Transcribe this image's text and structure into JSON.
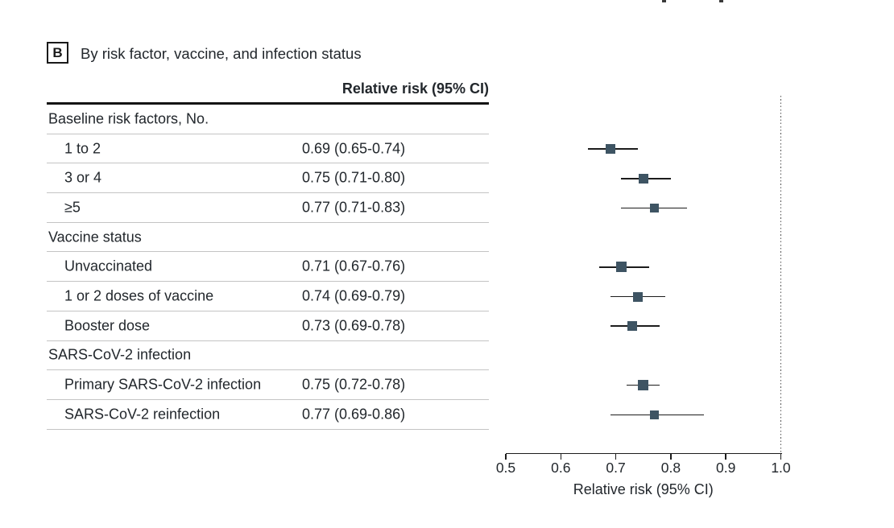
{
  "panel": {
    "letter": "B",
    "title": "By risk factor, vaccine, and infection status"
  },
  "table": {
    "column_header": "Relative risk (95% CI)",
    "rows": [
      {
        "type": "group",
        "label": "Baseline risk factors, No.",
        "value": ""
      },
      {
        "type": "item",
        "label": "1 to 2",
        "value": "0.69 (0.65-0.74)"
      },
      {
        "type": "item",
        "label": "3 or 4",
        "value": "0.75 (0.71-0.80)"
      },
      {
        "type": "item",
        "label": "≥5",
        "value": "0.77 (0.71-0.83)"
      },
      {
        "type": "group",
        "label": "Vaccine status",
        "value": ""
      },
      {
        "type": "item",
        "label": "Unvaccinated",
        "value": "0.71 (0.67-0.76)"
      },
      {
        "type": "item",
        "label": "1 or 2 doses of vaccine",
        "value": "0.74 (0.69-0.79)"
      },
      {
        "type": "item",
        "label": "Booster dose",
        "value": "0.73 (0.69-0.78)"
      },
      {
        "type": "group",
        "label": "SARS-CoV-2 infection",
        "value": ""
      },
      {
        "type": "item",
        "label": "Primary SARS-CoV-2 infection",
        "value": "0.75 (0.72-0.78)"
      },
      {
        "type": "item",
        "label": "SARS-CoV-2 reinfection",
        "value": "0.77 (0.69-0.86)"
      }
    ]
  },
  "chart_data": {
    "type": "forest",
    "xlabel": "Relative risk (95% CI)",
    "xlim": [
      0.5,
      1.0
    ],
    "xtick_labels": [
      "0.5",
      "0.6",
      "0.7",
      "0.8",
      "0.9",
      "1.0"
    ],
    "reference_line": 1.0,
    "reference_line_style": "dotted",
    "rows": [
      {
        "label": "1 to 2",
        "rr": 0.69,
        "low": 0.65,
        "high": 0.74,
        "size": 12
      },
      {
        "label": "3 or 4",
        "rr": 0.75,
        "low": 0.71,
        "high": 0.8,
        "size": 12
      },
      {
        "label": "≥5",
        "rr": 0.77,
        "low": 0.71,
        "high": 0.83,
        "size": 11
      },
      {
        "label": "Unvaccinated",
        "rr": 0.71,
        "low": 0.67,
        "high": 0.76,
        "size": 13
      },
      {
        "label": "1 or 2 doses of vaccine",
        "rr": 0.74,
        "low": 0.69,
        "high": 0.79,
        "size": 12
      },
      {
        "label": "Booster dose",
        "rr": 0.73,
        "low": 0.69,
        "high": 0.78,
        "size": 12
      },
      {
        "label": "Primary SARS-CoV-2 infection",
        "rr": 0.75,
        "low": 0.72,
        "high": 0.78,
        "size": 13
      },
      {
        "label": "SARS-CoV-2 reinfection",
        "rr": 0.77,
        "low": 0.69,
        "high": 0.86,
        "size": 11
      }
    ]
  },
  "colors": {
    "marker": "#3e5463",
    "ci_line": "#1c1c1c",
    "axis": "#1c1c1c",
    "row_line": "#c4c4c4",
    "heavy_rule": "#141414",
    "text": "#22272c",
    "reference_dots": "#555555"
  }
}
